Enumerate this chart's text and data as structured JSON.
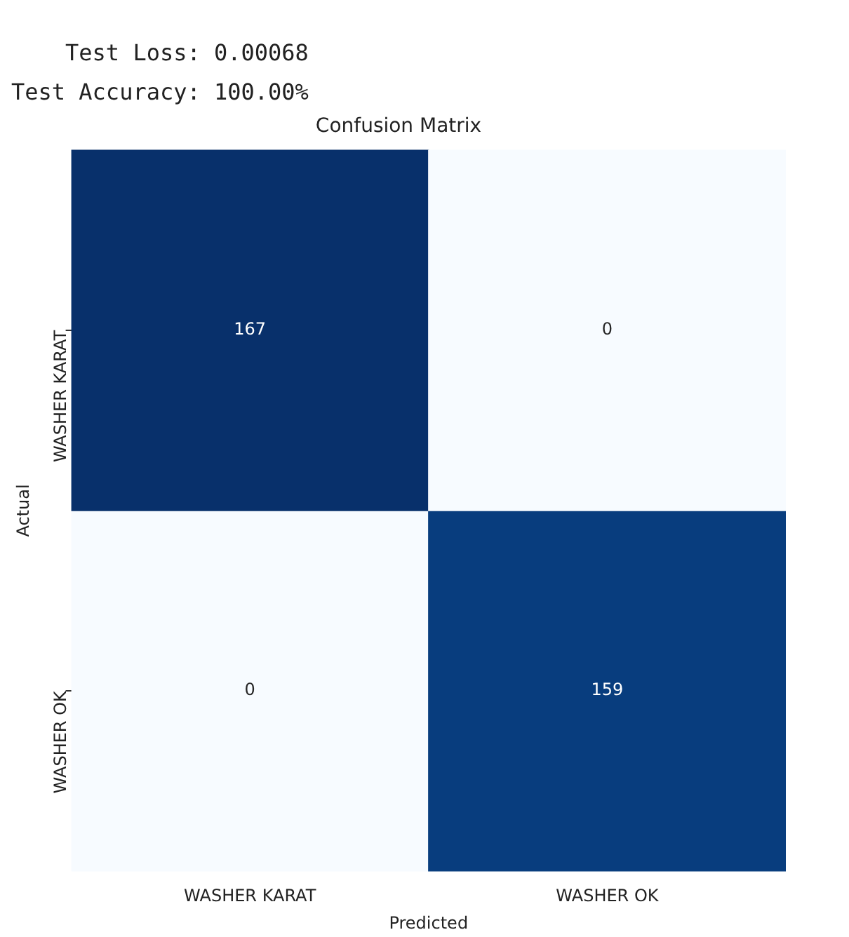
{
  "chart_data": {
    "type": "heatmap",
    "title": "Confusion Matrix",
    "xlabel": "Predicted",
    "ylabel": "Actual",
    "categories": [
      "WASHER KARAT",
      "WASHER OK"
    ],
    "y_categories": [
      "WASHER KARAT",
      "WASHER OK"
    ],
    "cells": [
      [
        167,
        0
      ],
      [
        0,
        159
      ]
    ],
    "data_labels": true,
    "annotations": [
      "    Test Loss: 0.00068",
      "Test Accuracy: 100.00%"
    ]
  }
}
